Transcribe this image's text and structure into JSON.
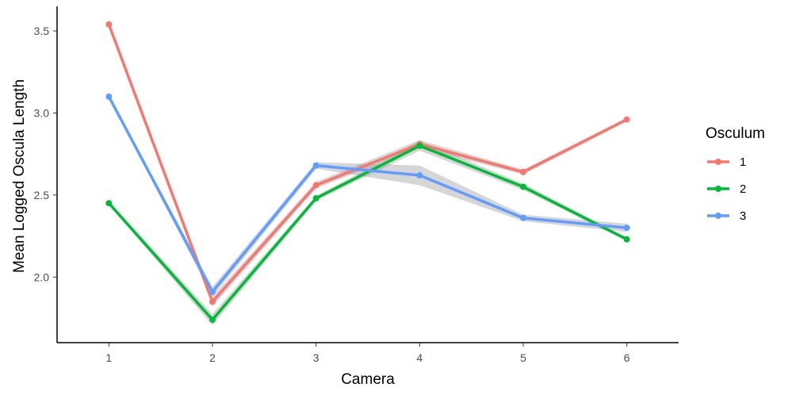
{
  "chart_data": {
    "type": "line",
    "title": "",
    "xlabel": "Camera",
    "ylabel": "Mean Logged Oscula Length",
    "x": [
      1,
      2,
      3,
      4,
      5,
      6
    ],
    "x_tick_labels": [
      "1",
      "2",
      "3",
      "4",
      "5",
      "6"
    ],
    "xlim": [
      0.5,
      6.5
    ],
    "y_ticks": [
      2.0,
      2.5,
      3.0,
      3.5
    ],
    "y_tick_labels": [
      "2.0",
      "2.5",
      "3.0",
      "3.5"
    ],
    "ylim": [
      1.6,
      3.65
    ],
    "grid": false,
    "confidence_band": true,
    "legend": {
      "title": "Osculum",
      "position": "right"
    },
    "series": [
      {
        "name": "1",
        "color": "#F8766D",
        "values": [
          3.54,
          1.85,
          2.56,
          2.81,
          2.64,
          2.96
        ],
        "band_halfwidth": [
          0.01,
          0.03,
          0.02,
          0.025,
          0.015,
          0.01
        ]
      },
      {
        "name": "2",
        "color": "#00BA38",
        "values": [
          2.45,
          1.74,
          2.48,
          2.8,
          2.55,
          2.23
        ],
        "band_halfwidth": [
          0.01,
          0.035,
          0.015,
          0.03,
          0.02,
          0.01
        ]
      },
      {
        "name": "3",
        "color": "#619CFF",
        "values": [
          3.1,
          1.91,
          2.68,
          2.62,
          2.36,
          2.3
        ],
        "band_halfwidth": [
          0.01,
          0.03,
          0.02,
          0.06,
          0.02,
          0.025
        ]
      }
    ]
  }
}
